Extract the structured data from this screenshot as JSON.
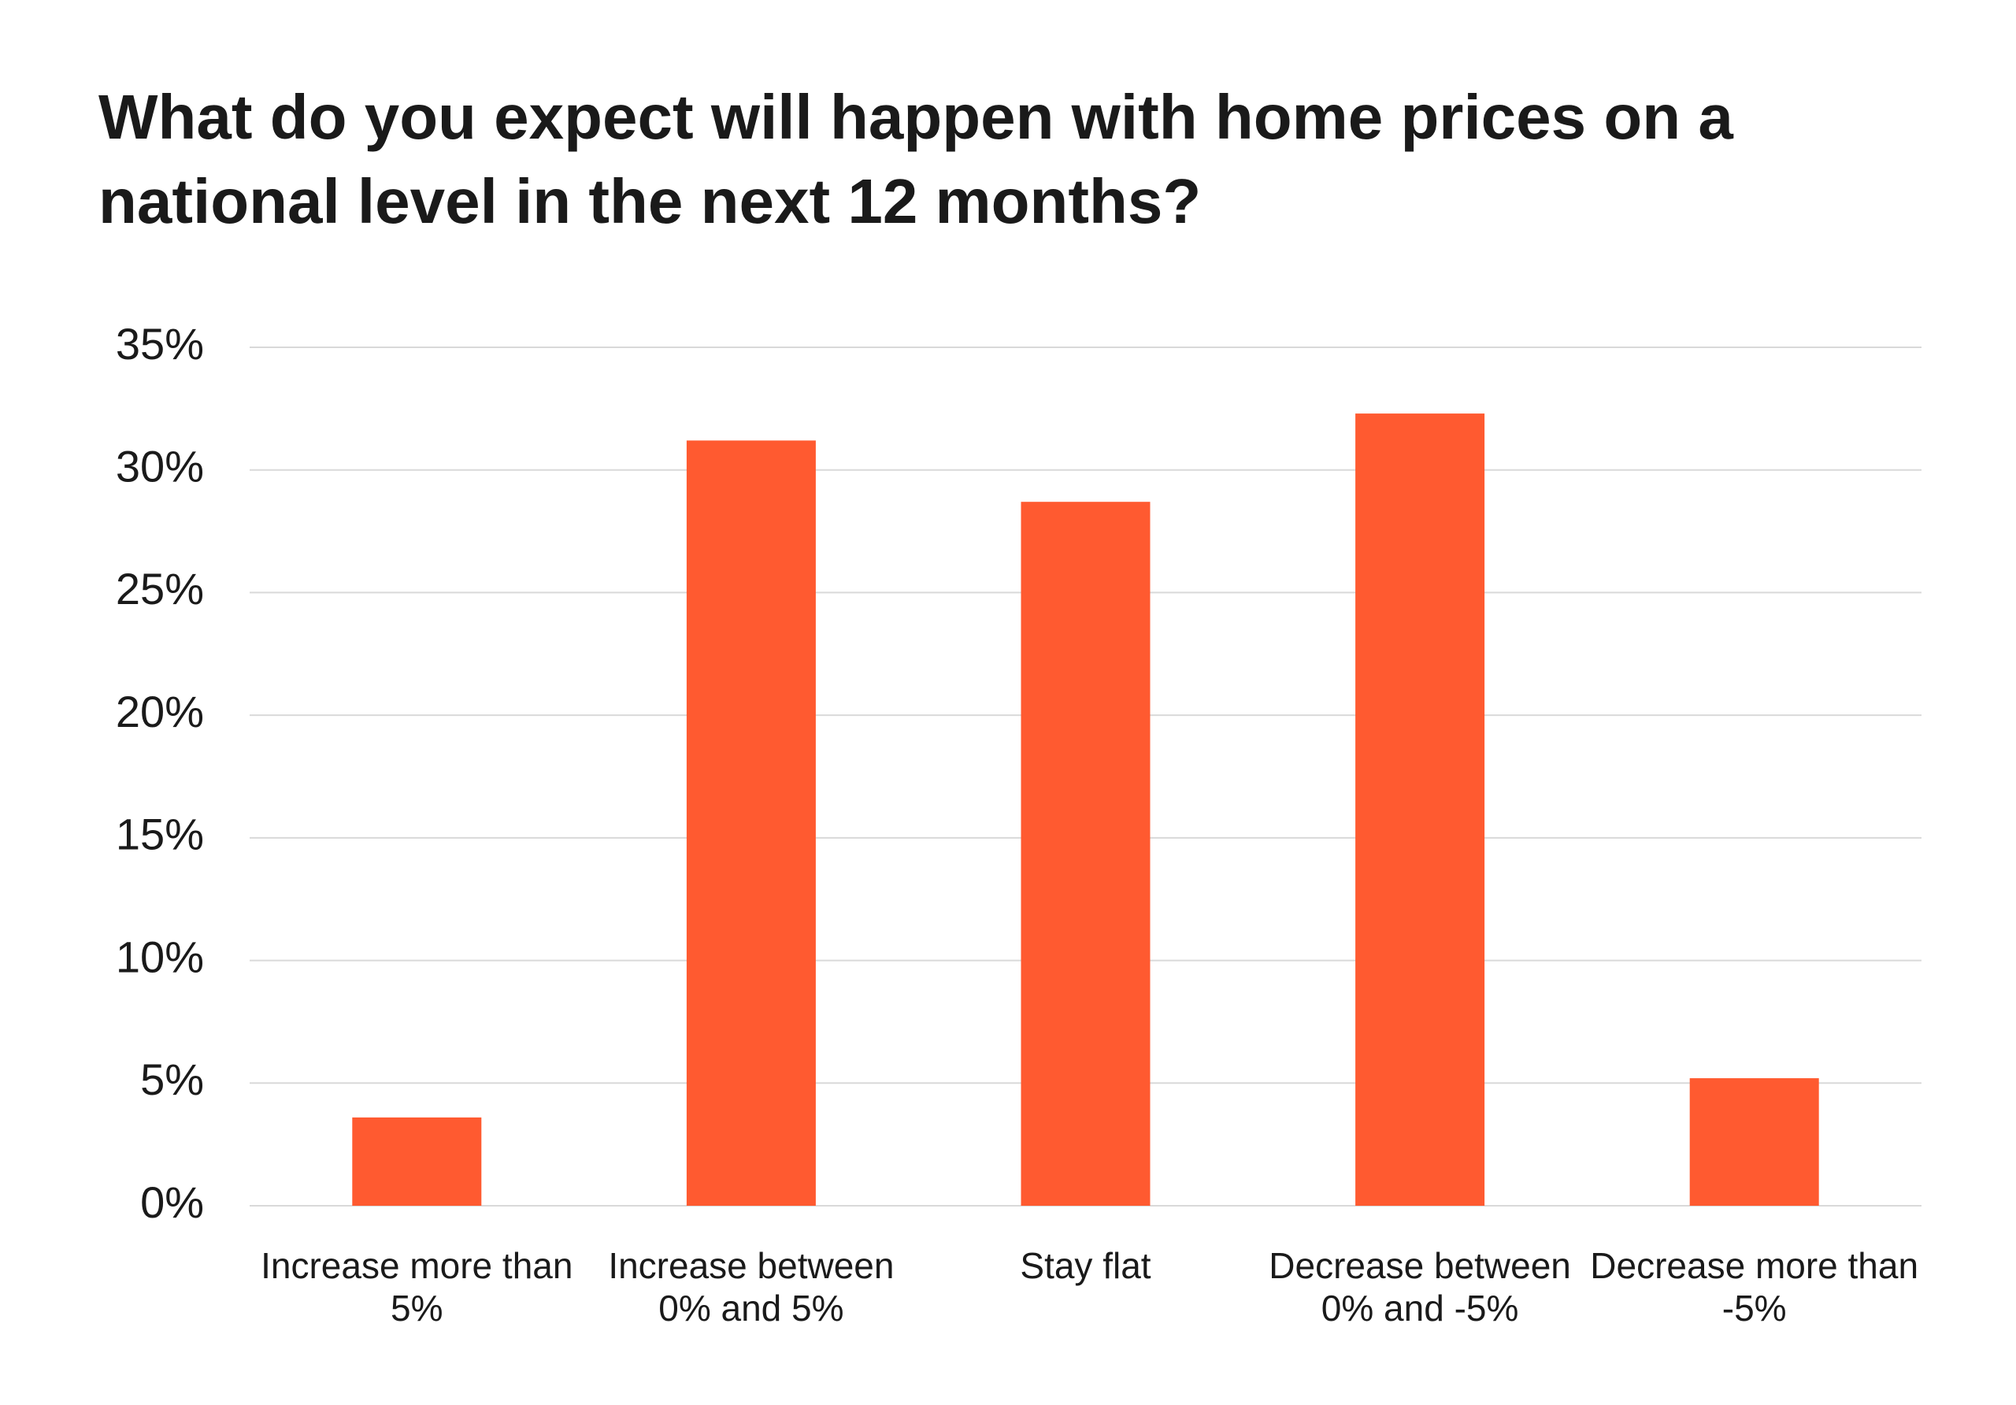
{
  "chart_data": {
    "type": "bar",
    "title": "What do you expect will happen with home prices on a national level in the next 12 months?",
    "categories": [
      "Increase more than 5%",
      "Increase between 0% and 5%",
      "Stay flat",
      "Decrease between 0% and -5%",
      "Decrease more than -5%"
    ],
    "values": [
      3.6,
      31.2,
      28.7,
      32.3,
      5.2
    ],
    "color": "#ff5a30",
    "ylim": [
      0,
      35
    ],
    "yticks": [
      {
        "value": 0,
        "label": "0%"
      },
      {
        "value": 5,
        "label": "5%"
      },
      {
        "value": 10,
        "label": "10%"
      },
      {
        "value": 15,
        "label": "15%"
      },
      {
        "value": 20,
        "label": "20%"
      },
      {
        "value": 25,
        "label": "25%"
      },
      {
        "value": 30,
        "label": "30%"
      },
      {
        "value": 35,
        "label": "35%"
      }
    ],
    "grid": true
  }
}
